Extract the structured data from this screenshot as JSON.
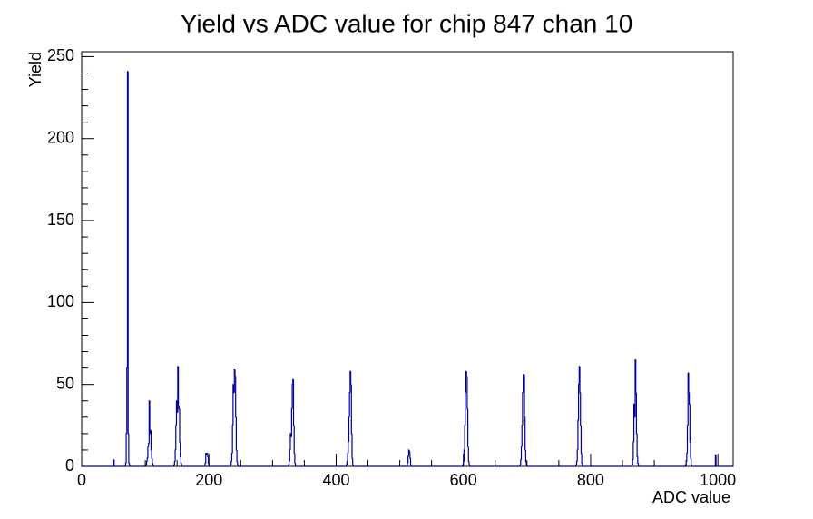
{
  "chart_data": {
    "type": "histogram",
    "title": "Yield vs ADC value for chip 847 chan 10",
    "x_label": "ADC value",
    "y_label": "Yield",
    "color": "#000099",
    "xlim": [
      0,
      1024
    ],
    "ylim": [
      0,
      253
    ],
    "xticks": [
      0,
      200,
      400,
      600,
      800,
      1000
    ],
    "yticks": [
      0,
      50,
      100,
      150,
      200,
      250
    ],
    "bins": [
      0,
      50,
      51,
      69,
      70,
      71,
      72,
      73,
      74,
      75,
      76,
      101,
      102,
      103,
      104,
      105,
      106,
      107,
      108,
      109,
      110,
      111,
      112,
      113,
      145,
      146,
      147,
      148,
      149,
      150,
      151,
      152,
      153,
      154,
      155,
      156,
      157,
      194,
      195,
      196,
      197,
      198,
      199,
      200,
      234,
      235,
      236,
      237,
      238,
      239,
      240,
      241,
      242,
      243,
      244,
      245,
      246,
      325,
      326,
      327,
      328,
      329,
      330,
      331,
      332,
      333,
      334,
      335,
      336,
      416,
      417,
      418,
      419,
      420,
      421,
      422,
      423,
      424,
      425,
      426,
      427,
      512,
      513,
      514,
      515,
      516,
      517,
      518,
      599,
      600,
      601,
      602,
      603,
      604,
      605,
      606,
      607,
      608,
      609,
      610,
      689,
      690,
      691,
      692,
      693,
      694,
      695,
      696,
      697,
      698,
      699,
      700,
      777,
      778,
      779,
      780,
      781,
      782,
      783,
      784,
      785,
      786,
      787,
      865,
      866,
      867,
      868,
      869,
      870,
      871,
      872,
      873,
      874,
      875,
      949,
      950,
      951,
      952,
      953,
      954,
      955,
      956,
      957,
      958,
      959,
      996,
      997,
      1024
    ],
    "counts": [
      0,
      4,
      0,
      2,
      20,
      60,
      241,
      20,
      2,
      1,
      0,
      1,
      3,
      5,
      12,
      14,
      40,
      20,
      22,
      10,
      5,
      2,
      1,
      0,
      1,
      3,
      10,
      25,
      40,
      33,
      61,
      37,
      35,
      15,
      6,
      2,
      0,
      2,
      8,
      7,
      8,
      6,
      2,
      0,
      1,
      3,
      8,
      25,
      50,
      45,
      59,
      55,
      30,
      10,
      3,
      1,
      0,
      1,
      3,
      10,
      20,
      18,
      35,
      50,
      53,
      25,
      8,
      2,
      0,
      1,
      3,
      8,
      15,
      30,
      45,
      58,
      50,
      20,
      5,
      1,
      0,
      2,
      6,
      10,
      9,
      5,
      1,
      0,
      1,
      3,
      10,
      25,
      45,
      58,
      55,
      35,
      12,
      3,
      1,
      0,
      1,
      4,
      12,
      25,
      45,
      56,
      56,
      30,
      10,
      3,
      1,
      0,
      1,
      3,
      10,
      28,
      50,
      61,
      45,
      25,
      8,
      2,
      0,
      1,
      4,
      15,
      38,
      30,
      65,
      45,
      20,
      6,
      2,
      0,
      1,
      3,
      8,
      25,
      57,
      45,
      38,
      15,
      5,
      1,
      0,
      7,
      0
    ]
  }
}
